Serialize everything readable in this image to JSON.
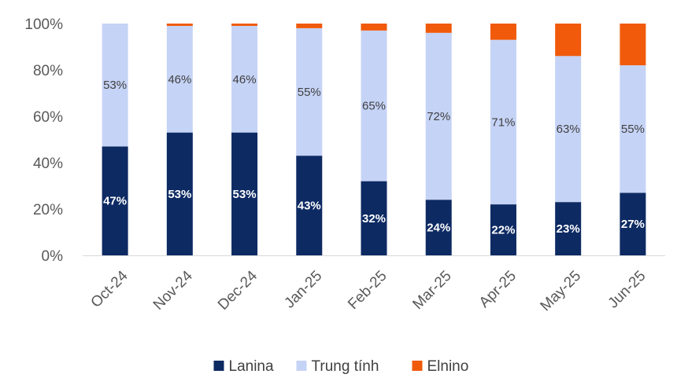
{
  "chart_data": {
    "type": "bar",
    "stacked": true,
    "percent_stacked": true,
    "categories": [
      "Oct-24",
      "Nov-24",
      "Dec-24",
      "Jan-25",
      "Feb-25",
      "Mar-25",
      "Apr-25",
      "May-25",
      "Jun-25"
    ],
    "series": [
      {
        "name": "Lanina",
        "color": "#0d2a63",
        "values": [
          47,
          53,
          53,
          43,
          32,
          24,
          22,
          23,
          27
        ],
        "labels": [
          "47%",
          "53%",
          "53%",
          "43%",
          "32%",
          "24%",
          "22%",
          "23%",
          "27%"
        ],
        "label_color": "#ffffff"
      },
      {
        "name": "Trung tính",
        "color": "#c5d3f6",
        "values": [
          53,
          46,
          46,
          55,
          65,
          72,
          71,
          63,
          55
        ],
        "labels": [
          "53%",
          "46%",
          "46%",
          "55%",
          "65%",
          "72%",
          "71%",
          "63%",
          "55%"
        ],
        "label_color": "#404040"
      },
      {
        "name": "Elnino",
        "color": "#f05a0a",
        "values": [
          0,
          1,
          1,
          2,
          3,
          4,
          7,
          14,
          18
        ],
        "labels": [],
        "label_color": "#404040"
      }
    ],
    "y_ticks": [
      "0%",
      "20%",
      "40%",
      "60%",
      "80%",
      "100%"
    ],
    "ylim": [
      0,
      100
    ],
    "grid": false,
    "legend_position": "bottom"
  }
}
